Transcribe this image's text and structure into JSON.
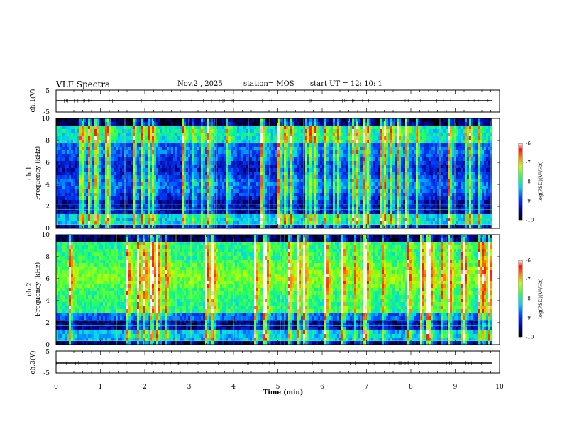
{
  "header": {
    "title": "VLF Spectra",
    "date": "Nov.2 , 2025",
    "station": "station= MOS",
    "start": "start UT = 12: 10: 1"
  },
  "chart_data": {
    "type": "heatmap",
    "xlabel": "Time (min)",
    "xlim": [
      0,
      10
    ],
    "x_ticks": [
      "0",
      "1",
      "2",
      "3",
      "4",
      "5",
      "6",
      "7",
      "8",
      "9",
      "10"
    ],
    "panels": [
      {
        "ylabel": "ch.1(V)",
        "type": "line",
        "ylim": [
          -5,
          5
        ],
        "y_ticks": [
          "5",
          "-5"
        ]
      },
      {
        "ylabel_top": "ch.1",
        "ylabel_bottom": "Frequency (kHz)",
        "type": "heatmap",
        "ylim": [
          0,
          10
        ],
        "y_ticks": [
          "0",
          "2",
          "4",
          "6",
          "8",
          "10"
        ],
        "colorbar": {
          "label": "log(PSD)(V²/Hz)",
          "range": [
            -10,
            -6
          ],
          "ticks": [
            "-6",
            "-7",
            "-8",
            "-9",
            "-10"
          ]
        }
      },
      {
        "ylabel_top": "ch.2",
        "ylabel_bottom": "Frequency (kHz)",
        "type": "heatmap",
        "ylim": [
          0,
          10
        ],
        "y_ticks": [
          "0",
          "2",
          "4",
          "6",
          "8",
          "10"
        ],
        "colorbar": {
          "label": "log(PSD)(V²/Hz)",
          "range": [
            -10,
            -6
          ],
          "ticks": [
            "-6",
            "-7",
            "-8",
            "-9",
            "-10"
          ]
        }
      },
      {
        "ylabel": "ch.3(V)",
        "type": "line",
        "ylim": [
          -5,
          5
        ],
        "y_ticks": [
          "5",
          "-5"
        ]
      }
    ],
    "grid": false,
    "data_end_min": 9.85
  }
}
